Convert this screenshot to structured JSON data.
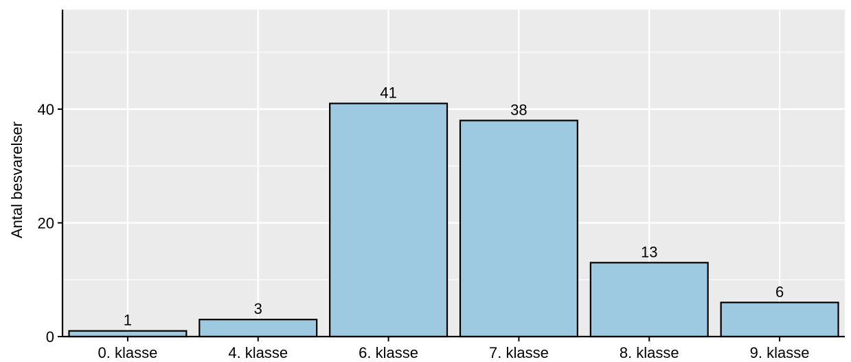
{
  "chart_data": {
    "type": "bar",
    "title": "",
    "xlabel": "",
    "ylabel": "Antal besvarelser",
    "categories": [
      "0. klasse",
      "4. klasse",
      "6. klasse",
      "7. klasse",
      "8. klasse",
      "9. klasse"
    ],
    "values": [
      1,
      3,
      41,
      38,
      13,
      6
    ],
    "data_labels": [
      "1",
      "3",
      "41",
      "38",
      "13",
      "6"
    ],
    "ylim": [
      0,
      57.5
    ],
    "yticks": [
      0,
      20,
      40
    ],
    "ytick_labels": [
      "0",
      "20",
      "40"
    ],
    "grid": true,
    "legend": "none",
    "colors": {
      "bar_fill": "#9ecae1",
      "bar_stroke": "#000000",
      "panel_bg": "#ebebeb",
      "grid": "#ffffff",
      "axis": "#000000"
    }
  }
}
